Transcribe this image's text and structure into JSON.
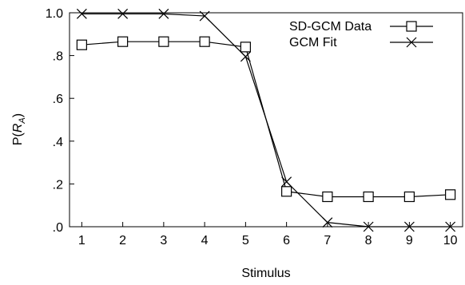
{
  "chart_data": {
    "type": "line",
    "xlabel": "Stimulus",
    "ylabel_prefix": "P(",
    "ylabel_var": "R",
    "ylabel_sub": "A",
    "ylabel_suffix": ")",
    "x": [
      1,
      2,
      3,
      4,
      5,
      6,
      7,
      8,
      9,
      10
    ],
    "x_tick_labels": [
      "1",
      "2",
      "3",
      "4",
      "5",
      "6",
      "7",
      "8",
      "9",
      "10"
    ],
    "ylim": [
      0,
      1
    ],
    "y_ticks": [
      0,
      0.2,
      0.4,
      0.6,
      0.8,
      1.0
    ],
    "y_tick_labels": [
      ".0",
      ".2",
      ".4",
      ".6",
      ".8",
      "1.0"
    ],
    "grid": false,
    "legend_position": "top-right",
    "series": [
      {
        "name": "SD-GCM Data",
        "marker": "square",
        "values": [
          0.85,
          0.865,
          0.865,
          0.865,
          0.84,
          0.165,
          0.14,
          0.14,
          0.14,
          0.15
        ]
      },
      {
        "name": "GCM Fit",
        "marker": "x",
        "values": [
          0.995,
          0.995,
          0.995,
          0.985,
          0.795,
          0.21,
          0.02,
          0.0,
          0.0,
          0.0
        ]
      }
    ]
  }
}
